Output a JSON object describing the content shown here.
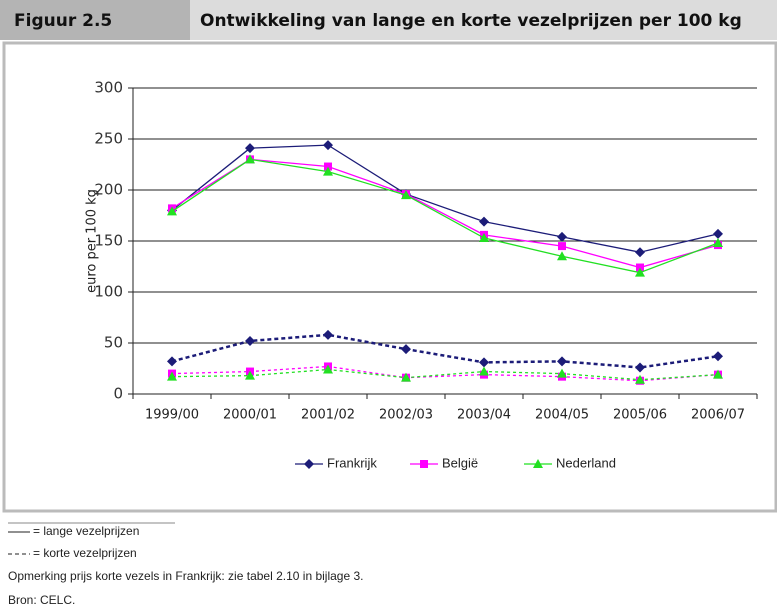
{
  "figure_label": "Figuur 2.5",
  "chart_data": {
    "type": "line",
    "title": "Ontwikkeling van lange en korte vezelprijzen per 100 kg",
    "ylabel": "euro per 100 kg",
    "categories": [
      "1999/00",
      "2000/01",
      "2001/02",
      "2002/03",
      "2003/04",
      "2004/05",
      "2005/06",
      "2006/07"
    ],
    "ylim": [
      0,
      300
    ],
    "yticks": [
      0,
      50,
      100,
      150,
      200,
      250,
      300
    ],
    "grid": true,
    "legend": "bottom",
    "series": [
      {
        "name": "Frankrijk",
        "color": "#1c1c78",
        "marker": "diamond",
        "values": [
          180,
          241,
          244,
          196,
          169,
          154,
          139,
          157
        ],
        "short_values": [
          32,
          52,
          58,
          44,
          31,
          32,
          26,
          37
        ]
      },
      {
        "name": "België",
        "color": "#ff00ff",
        "marker": "square",
        "values": [
          182,
          230,
          223,
          196,
          156,
          145,
          124,
          146
        ],
        "short_values": [
          20,
          22,
          27,
          16,
          19,
          17,
          13,
          19
        ]
      },
      {
        "name": "Nederland",
        "color": "#22e022",
        "marker": "triangle",
        "values": [
          179,
          230,
          218,
          195,
          153,
          135,
          119,
          148
        ],
        "short_values": [
          17,
          18,
          24,
          16,
          22,
          20,
          14,
          19
        ]
      }
    ]
  },
  "notes": [
    "= lange vezelprijzen",
    "= korte vezelprijzen",
    "Opmerking prijs korte vezels in Frankrijk: zie tabel 2.10 in bijlage 3.",
    "Bron: CELC."
  ]
}
